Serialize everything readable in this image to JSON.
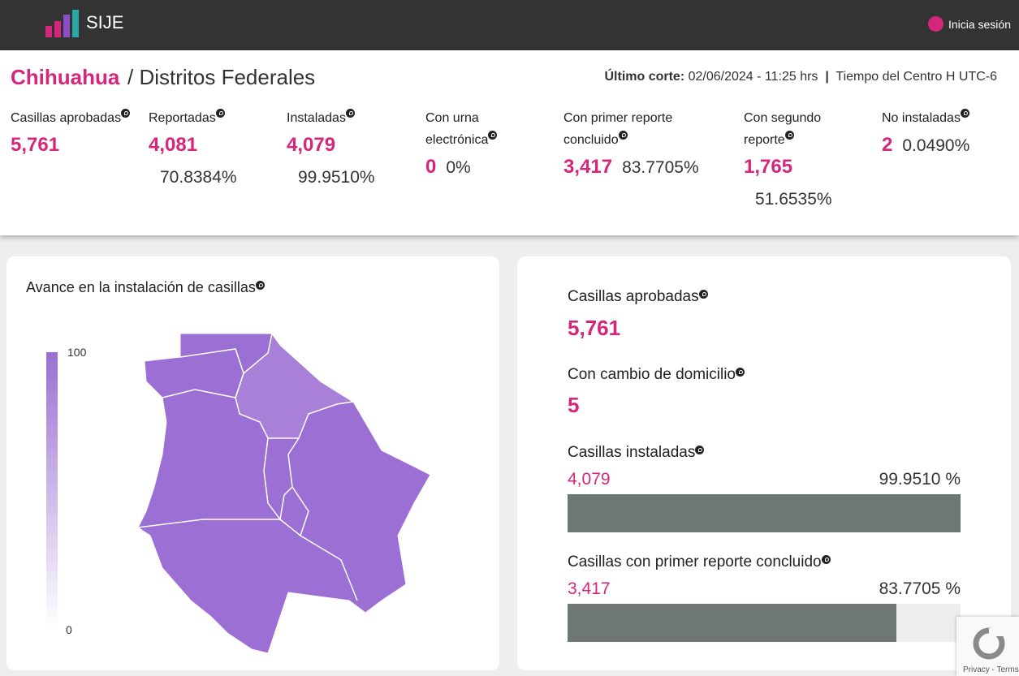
{
  "header": {
    "brand": "SIJE",
    "login": "Inicia sesión"
  },
  "title": {
    "state": "Chihuahua",
    "section": "/ Distritos Federales",
    "cut_label": "Último corte:",
    "cut_value": "02/06/2024 - 11:25 hrs",
    "separator": "|",
    "timezone": "Tiempo del Centro H UTC-6"
  },
  "stats": [
    {
      "label": "Casillas aprobadas",
      "value": "5,761"
    },
    {
      "label": "Reportadas",
      "value": "4,081",
      "percent": "70.8384%"
    },
    {
      "label": "Instaladas",
      "value": "4,079",
      "percent": "99.9510%"
    },
    {
      "label": "Con urna electrónica",
      "value": "0",
      "percent": "0%"
    },
    {
      "label": "Con primer reporte concluido",
      "value": "3,417",
      "percent": "83.7705%"
    },
    {
      "label": "Con segundo reporte",
      "value": "1,765",
      "percent": "51.6535%"
    },
    {
      "label": "No instaladas",
      "value": "2",
      "percent": "0.0490%"
    }
  ],
  "map": {
    "title": "Avance en la instalación de casillas",
    "scale_max": 100,
    "scale_min": 0
  },
  "summary": {
    "approved": {
      "label": "Casillas aprobadas",
      "value": "5,761"
    },
    "moved": {
      "label": "Con cambio de domicilio",
      "value": "5"
    },
    "installed": {
      "label": "Casillas instaladas",
      "value": "4,079",
      "percent": {
        "value": 99.951,
        "label": "99.9510 %"
      }
    },
    "first_report": {
      "label": "Casillas con primer reporte concluido",
      "value": "3,417",
      "percent": {
        "value": 83.7705,
        "label": "83.7705 %"
      }
    }
  },
  "recaptcha": "Privacy - Terms"
}
